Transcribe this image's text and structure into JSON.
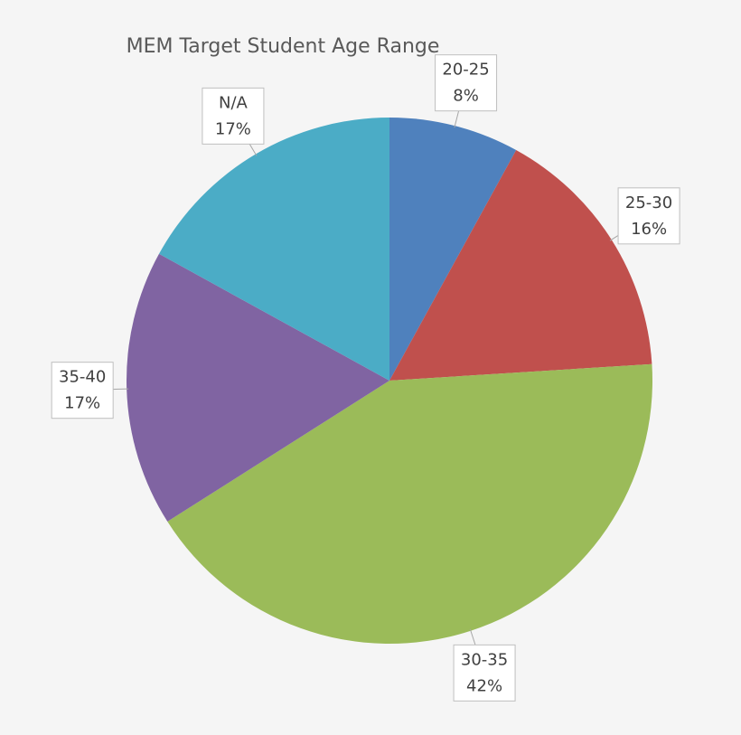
{
  "chart_data": {
    "type": "pie",
    "title": "MEM Target Student Age Range",
    "categories": [
      "20-25",
      "25-30",
      "30-35",
      "35-40",
      "N/A"
    ],
    "values": [
      8,
      16,
      42,
      17,
      17
    ],
    "value_labels": [
      "8%",
      "16%",
      "42%",
      "17%",
      "17%"
    ],
    "colors": [
      "#4f81bd",
      "#c0504d",
      "#9bbb59",
      "#8064a2",
      "#4bacc6"
    ]
  }
}
